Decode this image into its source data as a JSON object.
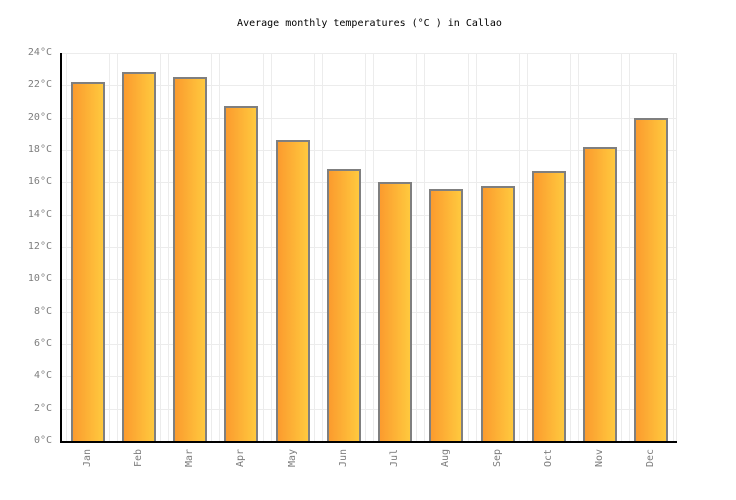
{
  "page": {
    "background": "#ffffff"
  },
  "chart_data": {
    "type": "bar",
    "title": "Average monthly temperatures (°C ) in Callao",
    "categories": [
      "Jan",
      "Feb",
      "Mar",
      "Apr",
      "May",
      "Jun",
      "Jul",
      "Aug",
      "Sep",
      "Oct",
      "Nov",
      "Dec"
    ],
    "values": [
      22.2,
      22.8,
      22.5,
      20.7,
      18.6,
      16.8,
      16.0,
      15.6,
      15.8,
      16.7,
      18.2,
      20.0
    ],
    "unit": "°C",
    "ylim": [
      0,
      24
    ],
    "ytick_step": 2,
    "ytick_labels": [
      "0°C",
      "2°C",
      "4°C",
      "6°C",
      "8°C",
      "10°C",
      "12°C",
      "14°C",
      "16°C",
      "18°C",
      "20°C",
      "22°C",
      "24°C"
    ],
    "xlabel": "",
    "ylabel": "",
    "grid": true,
    "legend_position": "none",
    "colors": {
      "bar_gradient_left": "#fb9b2e",
      "bar_gradient_right": "#ffc93e",
      "bar_border": "#7f7f7f",
      "gridline": "#ececec",
      "axis": "#000000",
      "tick_label": "#7d7d7d",
      "title": "#000000",
      "background": "#ffffff"
    }
  }
}
